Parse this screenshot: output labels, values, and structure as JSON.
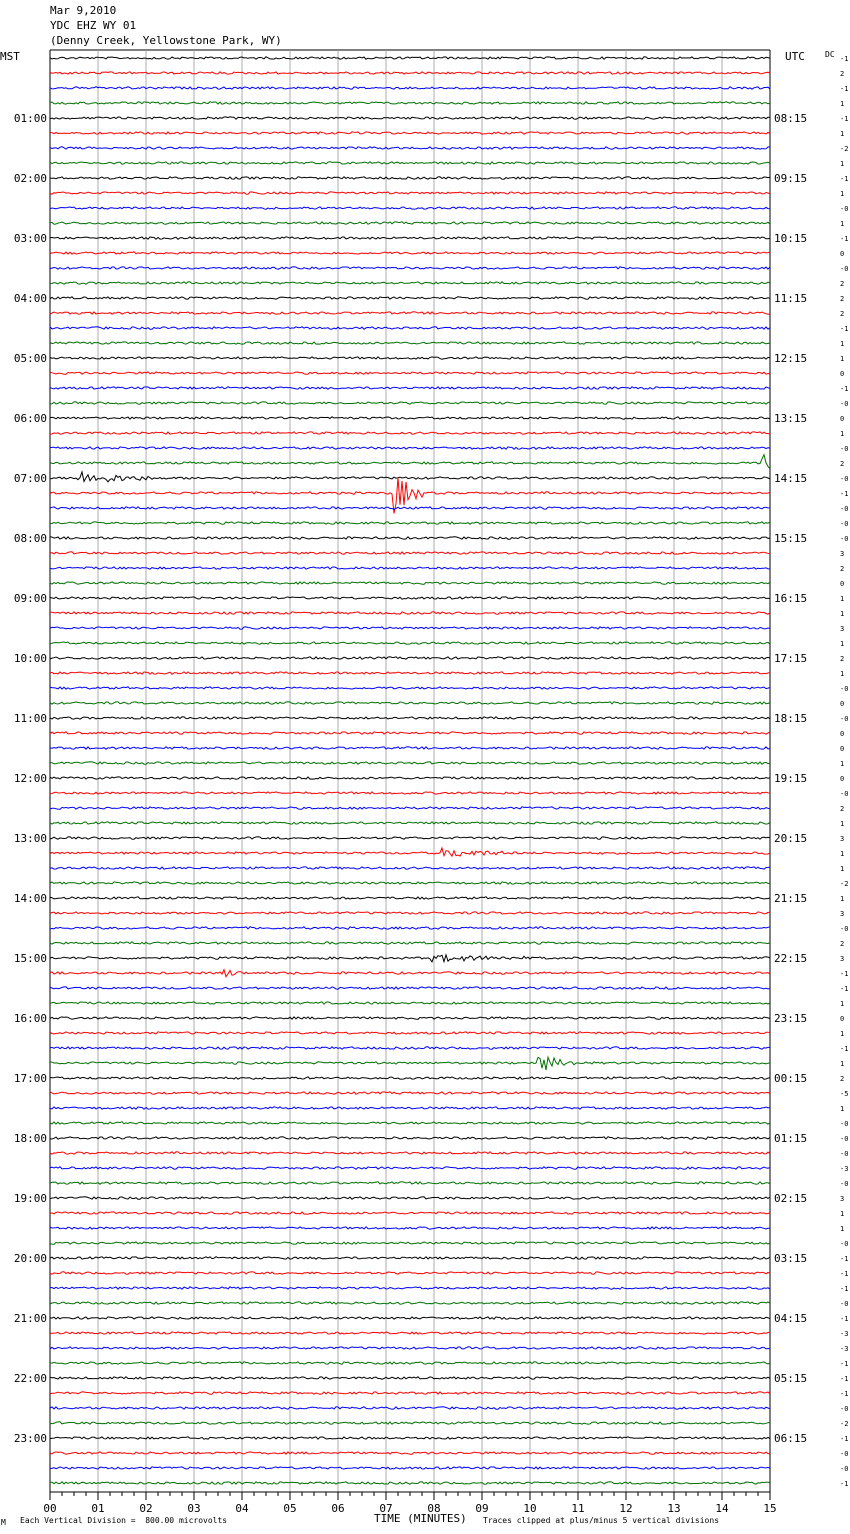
{
  "header": {
    "date": "Mar 9,2010",
    "station": "YDC EHZ WY 01",
    "location": "(Denny Creek, Yellowstone Park, WY)",
    "left_tz": "MST",
    "right_tz": "UTC",
    "dc_label": "DC"
  },
  "footer": {
    "scale": "Each Vertical Division =  800.00 microvolts",
    "xlabel": "TIME (MINUTES)",
    "clip_note": "Traces clipped at plus/minus 5 vertical divisions",
    "corner_mark": "M"
  },
  "chart_data": {
    "type": "line",
    "title": "",
    "xlabel": "TIME (MINUTES)",
    "xlim": [
      0,
      15
    ],
    "x_ticks": [
      "00",
      "01",
      "02",
      "03",
      "04",
      "05",
      "06",
      "07",
      "08",
      "09",
      "10",
      "11",
      "12",
      "13",
      "14",
      "15"
    ],
    "trace_colors": [
      "#000000",
      "#ff0000",
      "#0000ff",
      "#007000"
    ],
    "grid": true,
    "left_labels": [
      "01:00",
      "02:00",
      "03:00",
      "04:00",
      "05:00",
      "06:00",
      "07:00",
      "08:00",
      "09:00",
      "10:00",
      "11:00",
      "12:00",
      "13:00",
      "14:00",
      "15:00",
      "16:00",
      "17:00",
      "18:00",
      "19:00",
      "20:00",
      "21:00",
      "22:00",
      "23:00"
    ],
    "right_labels": [
      "08:15",
      "09:15",
      "10:15",
      "11:15",
      "12:15",
      "13:15",
      "14:15",
      "15:15",
      "16:15",
      "17:15",
      "18:15",
      "19:15",
      "20:15",
      "21:15",
      "22:15",
      "23:15",
      "00:15",
      "01:15",
      "02:15",
      "03:15",
      "04:15",
      "05:15",
      "06:15"
    ],
    "dc_offsets": [
      "-1",
      "2",
      "-1",
      "1",
      "-1",
      "1",
      "-2",
      "1",
      "-1",
      "1",
      "-0",
      "1",
      "-1",
      "0",
      "-0",
      "2",
      "2",
      "2",
      "-1",
      "1",
      "1",
      "0",
      "-1",
      "-0",
      "0",
      "1",
      "-0",
      "2",
      "-0",
      "-1",
      "-0",
      "-0",
      "-0",
      "3",
      "2",
      "0",
      "1",
      "1",
      "3",
      "1",
      "2",
      "1",
      "-0",
      "0",
      "-0",
      "0",
      "0",
      "1",
      "0",
      "-0",
      "2",
      "1",
      "3",
      "1",
      "1",
      "-2",
      "1",
      "3",
      "-0",
      "2",
      "3",
      "-1",
      "-1",
      "1",
      "0",
      "1",
      "-1",
      "1",
      "2",
      "-5",
      "1",
      "-0",
      "-0",
      "-0",
      "-3",
      "-0",
      "3",
      "1",
      "1",
      "-0",
      "-1",
      "-1",
      "-1",
      "-0",
      "-1",
      "-3",
      "-3",
      "-1",
      "-1",
      "-1",
      "-0",
      "-2",
      "-1",
      "-0",
      "-0",
      "-1"
    ],
    "events": [
      {
        "trace": 27,
        "t": 14.85,
        "amp": 2.5,
        "dur": 0.3
      },
      {
        "trace": 28,
        "t": 0.6,
        "amp": 1.2,
        "dur": 1.6
      },
      {
        "trace": 29,
        "t": 7.2,
        "amp": 4.0,
        "dur": 0.6
      },
      {
        "trace": 53,
        "t": 8.2,
        "amp": 0.8,
        "dur": 1.5
      },
      {
        "trace": 60,
        "t": 8.0,
        "amp": 0.6,
        "dur": 2.0
      },
      {
        "trace": 61,
        "t": 3.6,
        "amp": 0.9,
        "dur": 0.4
      },
      {
        "trace": 67,
        "t": 10.2,
        "amp": 1.6,
        "dur": 0.8
      }
    ]
  }
}
